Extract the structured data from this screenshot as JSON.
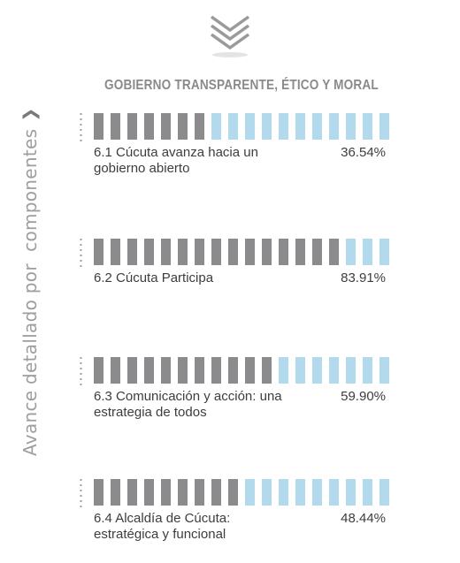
{
  "side_label": "Avance detallado por  componentes",
  "title": "GOBIERNO TRANSPARENTE, ÉTICO Y MORAL",
  "colors": {
    "filled": "#8b8b8d",
    "empty": "#b3d9ec"
  },
  "chart_data": {
    "type": "bar",
    "title": "GOBIERNO TRANSPARENTE, ÉTICO Y MORAL",
    "categories": [
      "6.1 Cúcuta avanza hacia un gobierno abierto",
      "6.2 Cúcuta Participa",
      "6.3 Comunicación y acción: una estrategia de todos",
      "6.4 Alcaldía de Cúcuta: estratégica y funcional"
    ],
    "values": [
      36.54,
      83.91,
      59.9,
      48.44
    ],
    "value_labels": [
      "36.54%",
      "83.91%",
      "59.90%",
      "48.44%"
    ],
    "ylim": [
      0,
      100
    ]
  }
}
